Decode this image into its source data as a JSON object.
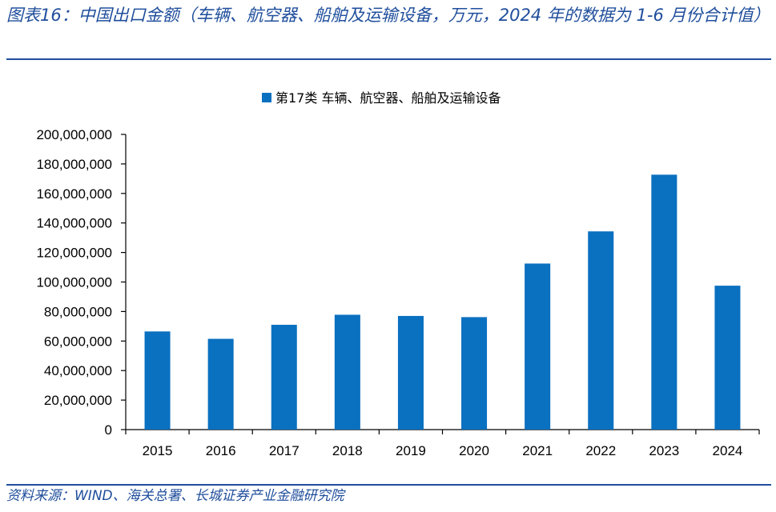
{
  "figure": {
    "title": "图表16：中国出口金额（车辆、航空器、船舶及运输设备，万元，2024 年的数据为 1-6 月份合计值）",
    "source": "资料来源：WIND、海关总署、长城证券产业金融研究院"
  },
  "colors": {
    "bar": "#0a70c0",
    "axis": "#000000",
    "accent": "#1f4e9c"
  },
  "chart_data": {
    "type": "bar",
    "categories": [
      "2015",
      "2016",
      "2017",
      "2018",
      "2019",
      "2020",
      "2021",
      "2022",
      "2023",
      "2024"
    ],
    "series": [
      {
        "name": "第17类 车辆、航空器、船舶及运输设备",
        "values": [
          66500000,
          61500000,
          71000000,
          77800000,
          77000000,
          76200000,
          112500000,
          134300000,
          172700000,
          97500000
        ]
      }
    ],
    "ylim": [
      0,
      200000000
    ],
    "yticks": [
      0,
      20000000,
      40000000,
      60000000,
      80000000,
      100000000,
      120000000,
      140000000,
      160000000,
      180000000,
      200000000
    ],
    "ytick_labels": [
      "0",
      "20,000,000",
      "40,000,000",
      "60,000,000",
      "80,000,000",
      "100,000,000",
      "120,000,000",
      "140,000,000",
      "160,000,000",
      "180,000,000",
      "200,000,000"
    ],
    "legend": "top-center",
    "grid": false
  }
}
